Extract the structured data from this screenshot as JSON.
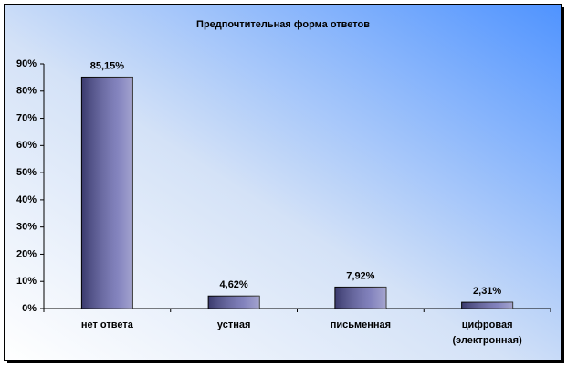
{
  "chart_data": {
    "type": "bar",
    "title": "Предпочтительная форма ответов",
    "categories": [
      "нет ответа",
      "устная",
      "письменная",
      "цифровая (электронная)"
    ],
    "values": [
      85.15,
      4.62,
      7.92,
      2.31
    ],
    "value_labels": [
      "85,15%",
      "4,62%",
      "7,92%",
      "2,31%"
    ],
    "color": "#5a5aa8",
    "ylim": [
      0,
      90
    ],
    "yticks": [
      {
        "value": 0,
        "label": "0%"
      },
      {
        "value": 10,
        "label": "10%"
      },
      {
        "value": 20,
        "label": "20%"
      },
      {
        "value": 30,
        "label": "30%"
      },
      {
        "value": 40,
        "label": "40%"
      },
      {
        "value": 50,
        "label": "50%"
      },
      {
        "value": 60,
        "label": "60%"
      },
      {
        "value": 70,
        "label": "70%"
      },
      {
        "value": 80,
        "label": "80%"
      },
      {
        "value": 90,
        "label": "90%"
      }
    ]
  }
}
